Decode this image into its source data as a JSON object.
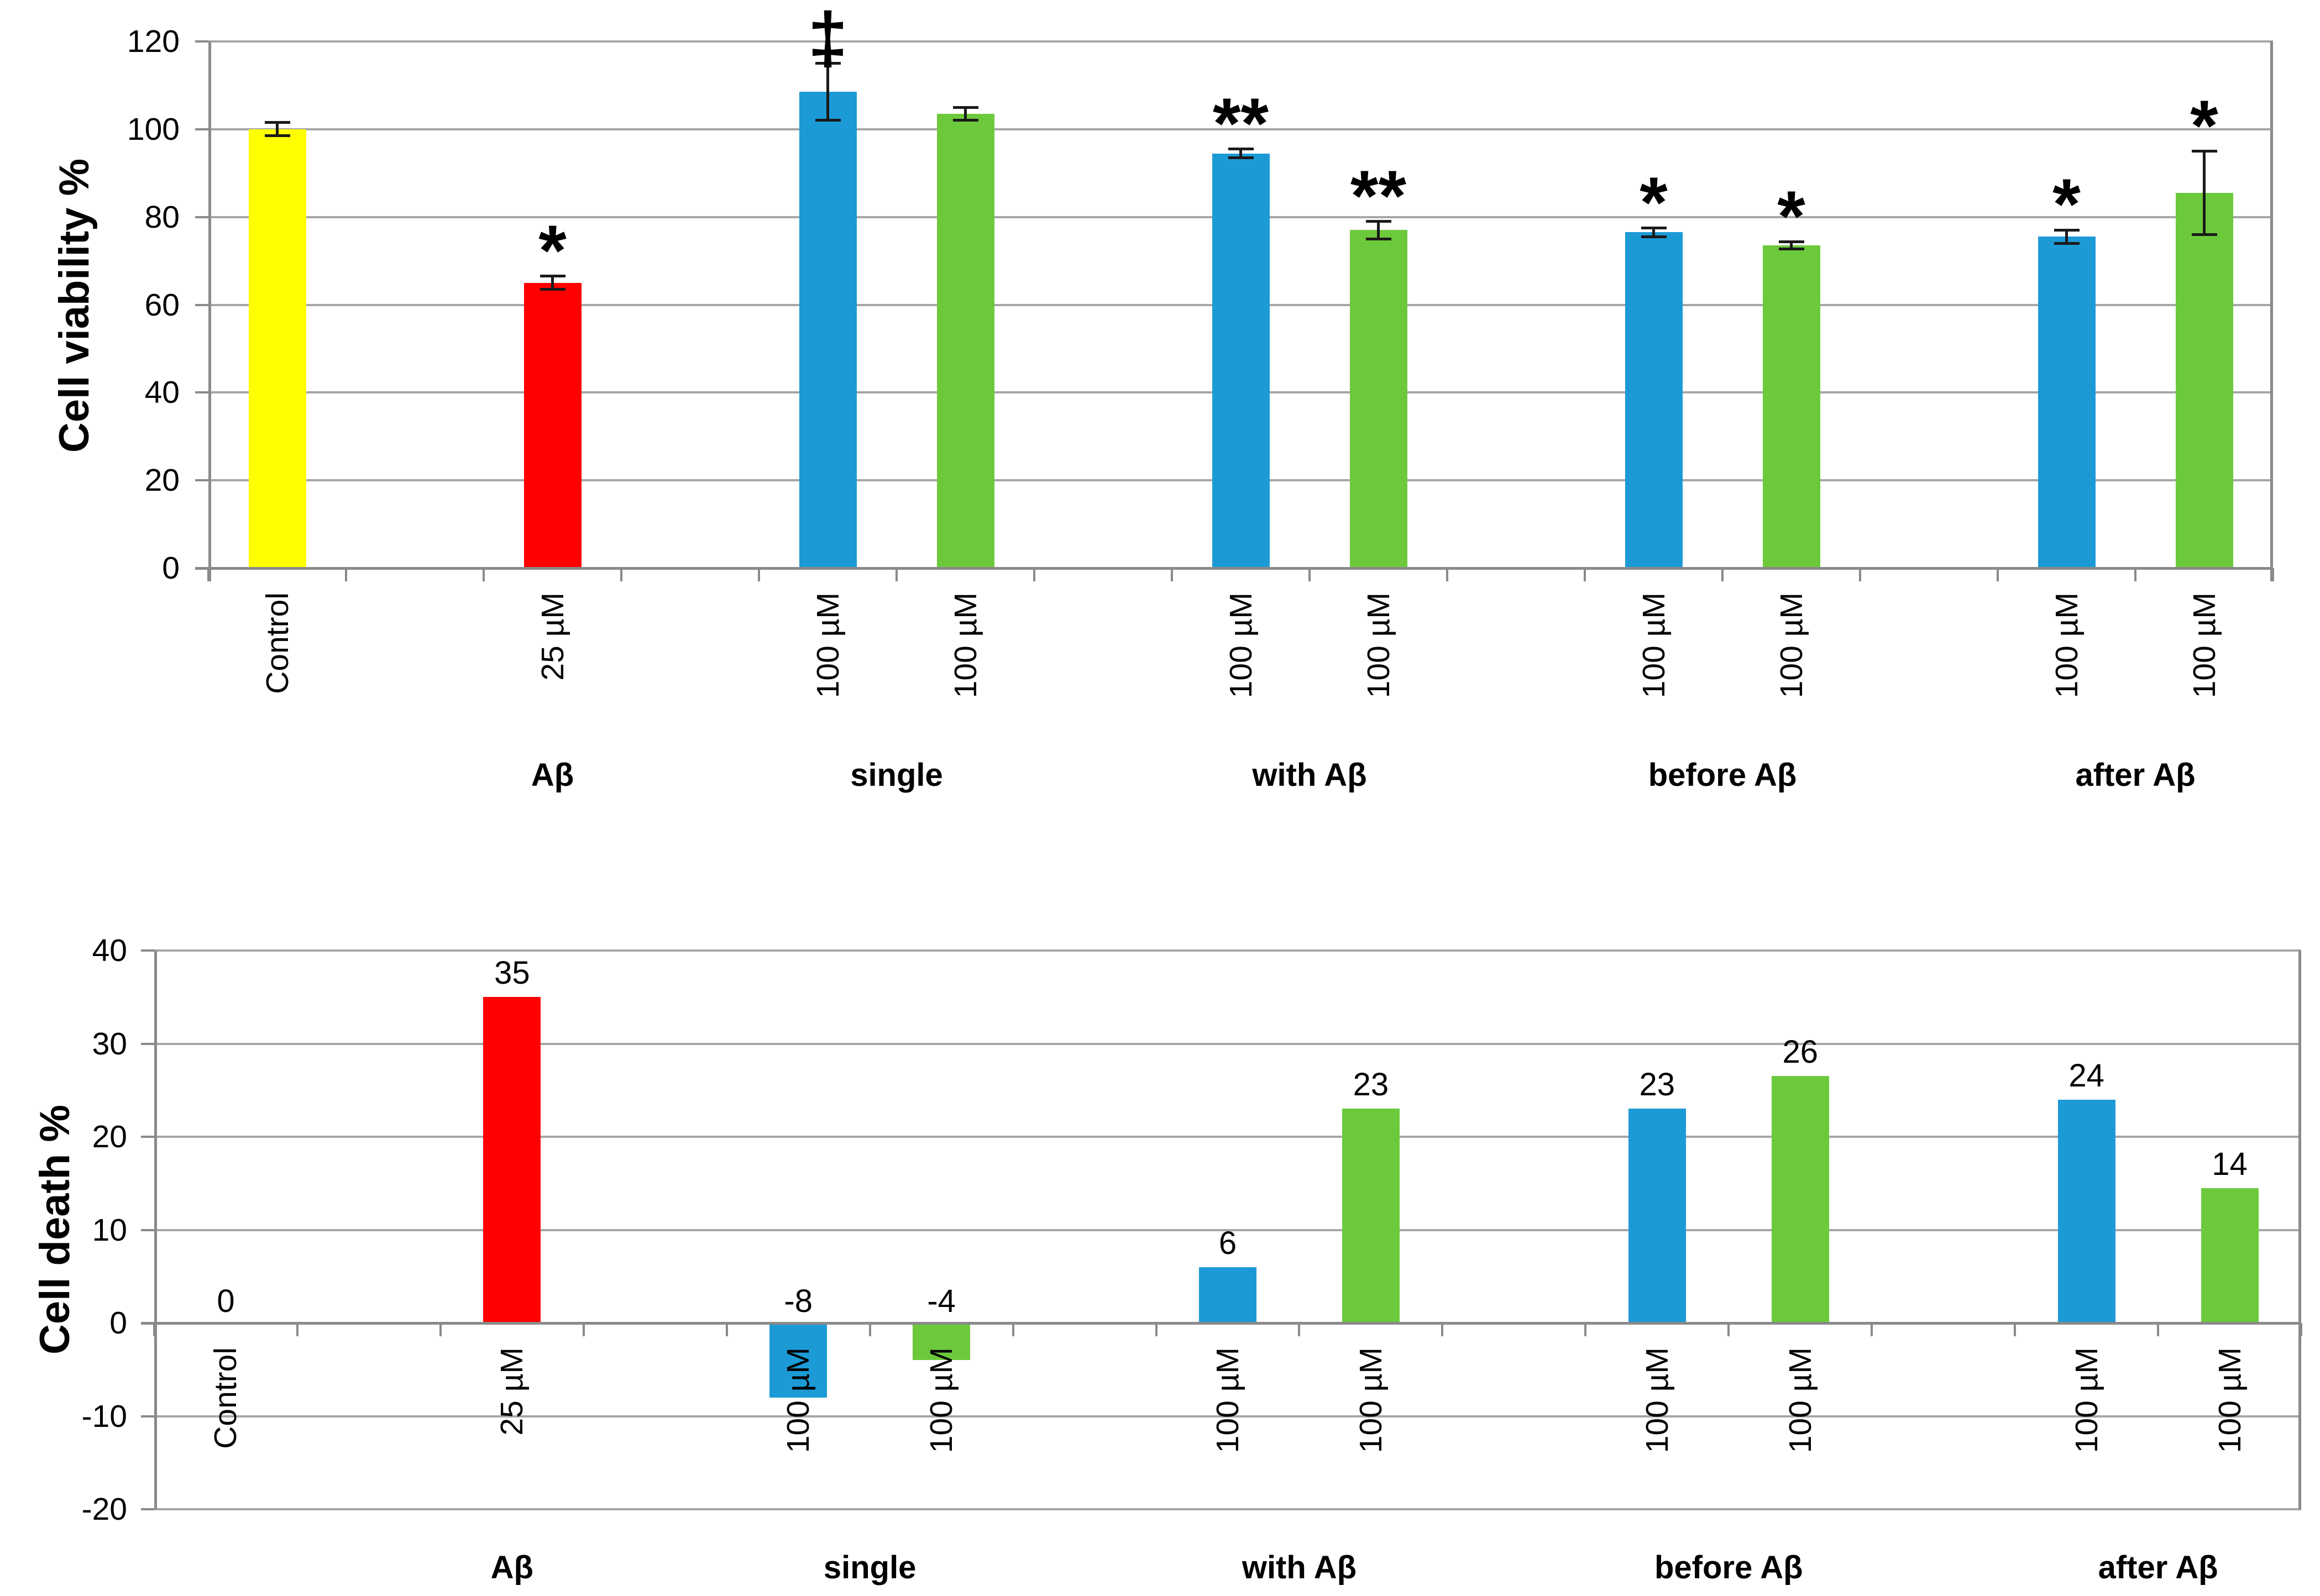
{
  "styles": {
    "gridline_color": "#a6a6a6",
    "axis_color": "#8a8a8a",
    "error_bar_color": "#1a1a1a",
    "background": "#ffffff",
    "bar_colors": {
      "control": "#ffff00",
      "ab_alone": "#fe0000",
      "compound_blue": "#1c9ad6",
      "compound_green": "#6cc93c"
    }
  },
  "chart_data": [
    {
      "type": "bar",
      "title": "",
      "ylabel": "Cell viability %",
      "xlabel": "",
      "ylim": [
        0,
        120
      ],
      "yticks": [
        0,
        20,
        40,
        60,
        80,
        100,
        120
      ],
      "grid": true,
      "legend": "none",
      "bars": [
        {
          "slot": 0,
          "group": "",
          "label": "Control",
          "value": 100,
          "error": 1.5,
          "color": "#ffff00",
          "annotation": ""
        },
        {
          "slot": 2,
          "group": "Aβ",
          "label": "25 µM",
          "value": 65,
          "error": 1.5,
          "color": "#fe0000",
          "annotation": "*"
        },
        {
          "slot": 4,
          "group": "single",
          "label": "100 µM",
          "value": 108.5,
          "error": 6.5,
          "color": "#1c9ad6",
          "annotation": "‡"
        },
        {
          "slot": 5,
          "group": "single",
          "label": "100 µM",
          "value": 103.5,
          "error": 1.5,
          "color": "#6cc93c",
          "annotation": ""
        },
        {
          "slot": 7,
          "group": "with Aβ",
          "label": "100 µM",
          "value": 94.5,
          "error": 1.0,
          "color": "#1c9ad6",
          "annotation": "**"
        },
        {
          "slot": 8,
          "group": "with Aβ",
          "label": "100 µM",
          "value": 77,
          "error": 2.0,
          "color": "#6cc93c",
          "annotation": "**"
        },
        {
          "slot": 10,
          "group": "before Aβ",
          "label": "100 µM",
          "value": 76.5,
          "error": 1.0,
          "color": "#1c9ad6",
          "annotation": "*"
        },
        {
          "slot": 11,
          "group": "before Aβ",
          "label": "100 µM",
          "value": 73.5,
          "error": 0.8,
          "color": "#6cc93c",
          "annotation": "*"
        },
        {
          "slot": 13,
          "group": "after Aβ",
          "label": "100 µM",
          "value": 75.5,
          "error": 1.5,
          "color": "#1c9ad6",
          "annotation": "*"
        },
        {
          "slot": 14,
          "group": "after Aβ",
          "label": "100 µM",
          "value": 85.5,
          "error": 9.5,
          "color": "#6cc93c",
          "annotation": "*"
        }
      ],
      "group_labels": [
        {
          "text": "Aβ",
          "slots": [
            2
          ]
        },
        {
          "text": "single",
          "slots": [
            4,
            5
          ]
        },
        {
          "text": "with Aβ",
          "slots": [
            7,
            8
          ]
        },
        {
          "text": "before Aβ",
          "slots": [
            10,
            11
          ]
        },
        {
          "text": "after Aβ",
          "slots": [
            13,
            14
          ]
        }
      ]
    },
    {
      "type": "bar",
      "title": "",
      "ylabel": "Cell death %",
      "xlabel": "",
      "ylim": [
        -20,
        40
      ],
      "yticks": [
        -20,
        -10,
        0,
        10,
        20,
        30,
        40
      ],
      "grid": true,
      "legend": "none",
      "bars": [
        {
          "slot": 0,
          "group": "",
          "label": "Control",
          "value": 0,
          "data_label": "0",
          "color": "#ffff00"
        },
        {
          "slot": 2,
          "group": "Aβ",
          "label": "25 µM",
          "value": 35,
          "data_label": "35",
          "color": "#fe0000"
        },
        {
          "slot": 4,
          "group": "single",
          "label": "100 µM",
          "value": -8,
          "data_label": "-8",
          "color": "#1c9ad6"
        },
        {
          "slot": 5,
          "group": "single",
          "label": "100 µM",
          "value": -4,
          "data_label": "-4",
          "color": "#6cc93c"
        },
        {
          "slot": 7,
          "group": "with Aβ",
          "label": "100 µM",
          "value": 6,
          "data_label": "6",
          "color": "#1c9ad6"
        },
        {
          "slot": 8,
          "group": "with Aβ",
          "label": "100 µM",
          "value": 23,
          "data_label": "23",
          "color": "#6cc93c"
        },
        {
          "slot": 10,
          "group": "before Aβ",
          "label": "100 µM",
          "value": 23,
          "data_label": "23",
          "color": "#1c9ad6"
        },
        {
          "slot": 11,
          "group": "before Aβ",
          "label": "100 µM",
          "value": 26.5,
          "data_label": "26",
          "color": "#6cc93c"
        },
        {
          "slot": 13,
          "group": "after Aβ",
          "label": "100 µM",
          "value": 24,
          "data_label": "24",
          "color": "#1c9ad6"
        },
        {
          "slot": 14,
          "group": "after Aβ",
          "label": "100 µM",
          "value": 14.5,
          "data_label": "14",
          "color": "#6cc93c"
        }
      ],
      "group_labels": [
        {
          "text": "Aβ",
          "slots": [
            2
          ]
        },
        {
          "text": "single",
          "slots": [
            4,
            5
          ]
        },
        {
          "text": "with Aβ",
          "slots": [
            7,
            8
          ]
        },
        {
          "text": "before Aβ",
          "slots": [
            10,
            11
          ]
        },
        {
          "text": "after Aβ",
          "slots": [
            13,
            14
          ]
        }
      ]
    }
  ]
}
